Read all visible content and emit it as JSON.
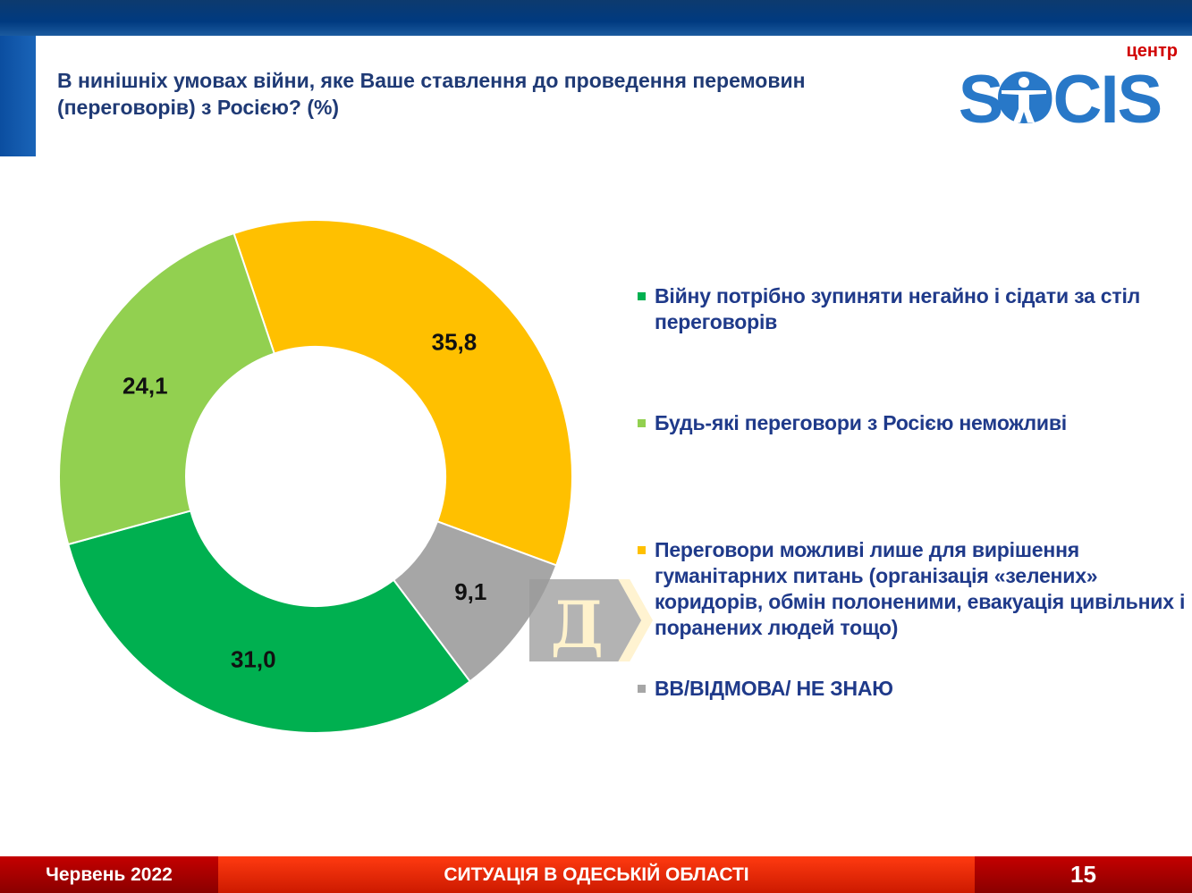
{
  "header": {
    "title": "В нинішніх умовах війни, яке Ваше ставлення до проведення перемовин (переговорів) з Росією? (%)",
    "logo": {
      "small": "центр",
      "main": "SOCIS"
    }
  },
  "chart_data": {
    "type": "pie",
    "donut": true,
    "start_angle_deg": -18.6,
    "slices": [
      {
        "label": "Переговори можливі лише для вирішення гуманітарних питань (організація «зелених» коридорів, обмін полоненими, евакуація цивільних і поранених людей тощо)",
        "value": 35.8,
        "display": "35,8",
        "color": "#ffc000"
      },
      {
        "label": "ВВ/ВІДМОВА/ НЕ ЗНАЮ",
        "value": 9.1,
        "display": "9,1",
        "color": "#a6a6a6"
      },
      {
        "label": "Війну потрібно зупиняти негайно і сідати за стіл переговорів",
        "value": 31.0,
        "display": "31,0",
        "color": "#00b050"
      },
      {
        "label": "Будь-які переговори з Росією неможливі",
        "value": 24.1,
        "display": "24,1",
        "color": "#92d050"
      }
    ],
    "legend": [
      {
        "label": "Війну потрібно зупиняти негайно і сідати за стіл переговорів",
        "color": "#00b050"
      },
      {
        "label": "Будь-які переговори з Росією неможливі",
        "color": "#92d050"
      },
      {
        "label": "Переговори можливі лише для вирішення гуманітарних питань (організація «зелених» коридорів, обмін полоненими, евакуація цивільних і поранених людей тощо)",
        "color": "#ffc000"
      },
      {
        "label": "ВВ/ВІДМОВА/ НЕ ЗНАЮ",
        "color": "#a6a6a6"
      }
    ]
  },
  "overlay": {
    "letter": "Д"
  },
  "footer": {
    "date": "Червень 2022",
    "section": "СИТУАЦІЯ В ОДЕСЬКІЙ ОБЛАСТІ",
    "page": "15"
  }
}
